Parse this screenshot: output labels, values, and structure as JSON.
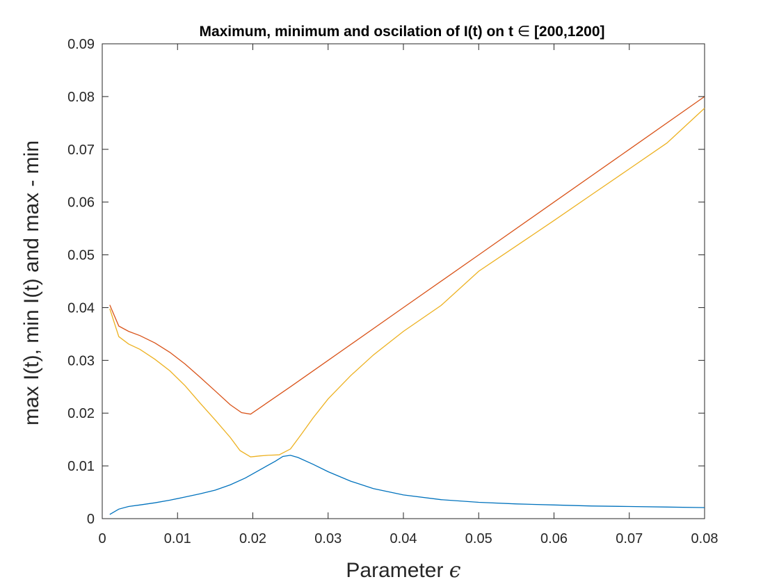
{
  "chart_data": {
    "type": "line",
    "title": "Maximum, minimum and oscilation of I(t) on t ∈ [200,1200]",
    "xlabel": "Parameter ϵ",
    "ylabel": "max I(t), min I(t) and max - min",
    "xlim": [
      0,
      0.08
    ],
    "ylim": [
      0,
      0.09
    ],
    "x_ticks": [
      "0",
      "0.01",
      "0.02",
      "0.03",
      "0.04",
      "0.05",
      "0.06",
      "0.07",
      "0.08"
    ],
    "y_ticks": [
      "0",
      "0.01",
      "0.02",
      "0.03",
      "0.04",
      "0.05",
      "0.06",
      "0.07",
      "0.08",
      "0.09"
    ],
    "grid": false,
    "series": [
      {
        "color": "#0072BD",
        "x": [
          0.001,
          0.0022,
          0.0035,
          0.005,
          0.007,
          0.009,
          0.011,
          0.013,
          0.015,
          0.017,
          0.019,
          0.021,
          0.023,
          0.024,
          0.025,
          0.026,
          0.028,
          0.03,
          0.033,
          0.036,
          0.04,
          0.045,
          0.05,
          0.055,
          0.06,
          0.065,
          0.07,
          0.075,
          0.08
        ],
        "y": [
          0.0008,
          0.0018,
          0.0023,
          0.0026,
          0.003,
          0.0035,
          0.0041,
          0.0047,
          0.0054,
          0.0064,
          0.0077,
          0.0093,
          0.0109,
          0.0118,
          0.012,
          0.0116,
          0.0103,
          0.0089,
          0.0071,
          0.0057,
          0.0045,
          0.0036,
          0.0031,
          0.0028,
          0.0026,
          0.0024,
          0.0023,
          0.0022,
          0.0021
        ]
      },
      {
        "color": "#D95319",
        "x": [
          0.001,
          0.0022,
          0.0035,
          0.005,
          0.007,
          0.009,
          0.011,
          0.013,
          0.015,
          0.017,
          0.0185,
          0.0197,
          0.025,
          0.03,
          0.04,
          0.05,
          0.06,
          0.07,
          0.08
        ],
        "y": [
          0.0405,
          0.0365,
          0.0355,
          0.0347,
          0.0333,
          0.0315,
          0.0293,
          0.0268,
          0.0242,
          0.0216,
          0.0201,
          0.0198,
          0.025,
          0.03,
          0.04,
          0.05,
          0.06,
          0.07,
          0.08
        ]
      },
      {
        "color": "#EDB120",
        "x": [
          0.001,
          0.0022,
          0.0035,
          0.005,
          0.007,
          0.009,
          0.011,
          0.013,
          0.015,
          0.017,
          0.0183,
          0.0197,
          0.021,
          0.022,
          0.0235,
          0.025,
          0.0265,
          0.028,
          0.03,
          0.033,
          0.036,
          0.04,
          0.045,
          0.05,
          0.055,
          0.06,
          0.065,
          0.07,
          0.075,
          0.08
        ],
        "y": [
          0.0398,
          0.0345,
          0.0331,
          0.0321,
          0.0302,
          0.028,
          0.0252,
          0.0219,
          0.0187,
          0.0154,
          0.0129,
          0.0117,
          0.0119,
          0.012,
          0.0121,
          0.0132,
          0.0161,
          0.0191,
          0.0227,
          0.0271,
          0.031,
          0.0355,
          0.0404,
          0.0469,
          0.0517,
          0.0565,
          0.0614,
          0.0663,
          0.0712,
          0.0778
        ]
      }
    ]
  }
}
